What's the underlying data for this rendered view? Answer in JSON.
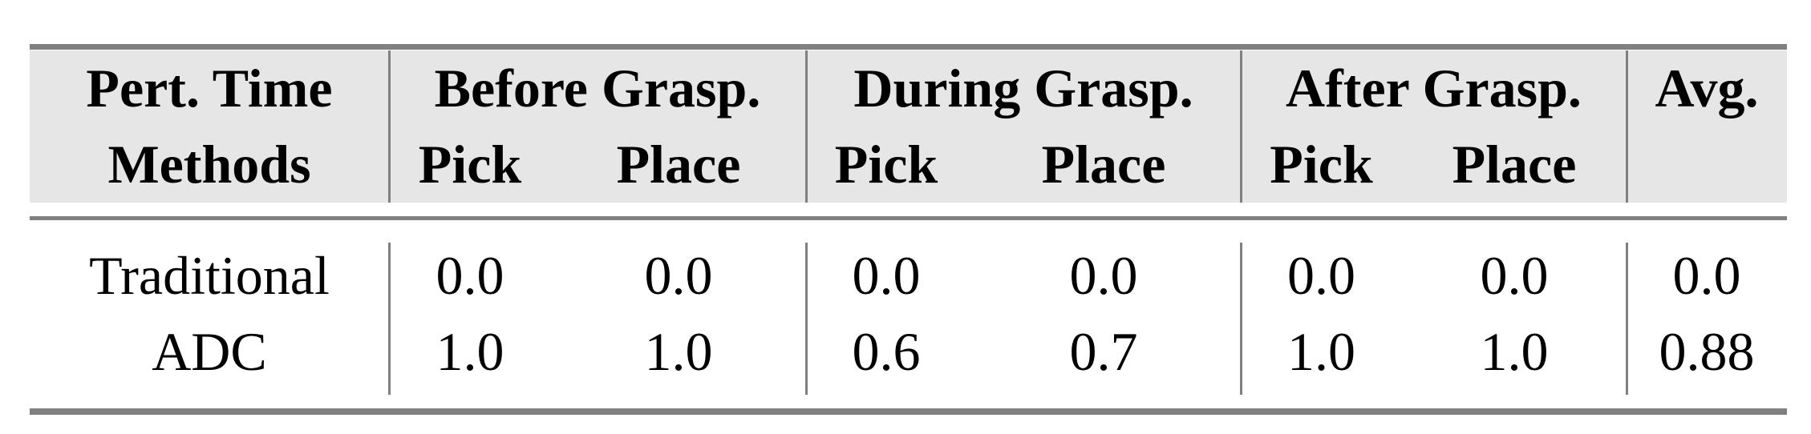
{
  "table": {
    "header_row1": [
      "Pert. Time",
      "Before Grasp.",
      "During Grasp.",
      "After Grasp.",
      "Avg."
    ],
    "header_row2": [
      "Methods",
      "Pick",
      "Place",
      "Pick",
      "Place",
      "Pick",
      "Place",
      ""
    ],
    "rows": [
      {
        "method": "Traditional",
        "values": [
          "0.0",
          "0.0",
          "0.0",
          "0.0",
          "0.0",
          "0.0",
          "0.0"
        ]
      },
      {
        "method": "ADC",
        "values": [
          "1.0",
          "1.0",
          "0.6",
          "0.7",
          "1.0",
          "1.0",
          "0.88"
        ]
      }
    ]
  },
  "colors": {
    "rule": "#808080",
    "header_bg": "#e6e6e6"
  }
}
